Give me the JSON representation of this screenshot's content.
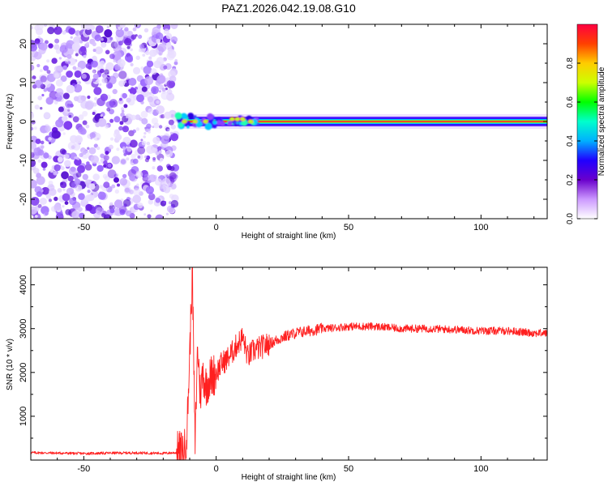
{
  "title": "PAZ1.2026.042.19.08.G10",
  "chart_data": [
    {
      "type": "heatmap",
      "name": "spectrogram",
      "xlabel": "Height of straight line (km)",
      "ylabel": "Frequency (Hz)",
      "xlim": [
        -70,
        125
      ],
      "ylim": [
        -25,
        25
      ],
      "xticks": [
        "-50",
        "0",
        "50",
        "100"
      ],
      "xtick_values": [
        -50,
        0,
        50,
        100
      ],
      "yticks": [
        "-20",
        "-10",
        "0",
        "10",
        "20"
      ],
      "ytick_values": [
        -20,
        -10,
        0,
        10,
        20
      ],
      "noise_region_x": [
        -70,
        -15
      ],
      "signal_track": {
        "x_start": -15,
        "x_end": 125,
        "frequency": 0
      },
      "colorbar": {
        "label": "Normalized spectral amplitude",
        "range": [
          0,
          1
        ],
        "ticks": [
          "0.0",
          "0.2",
          "0.4",
          "0.6",
          "0.8"
        ],
        "tick_values": [
          0.0,
          0.2,
          0.4,
          0.6,
          0.8
        ],
        "colormap": [
          "#ffffff",
          "#cc99ff",
          "#6a00cc",
          "#2000ff",
          "#00b0ff",
          "#00ffcc",
          "#00ff00",
          "#ccff00",
          "#ffcc00",
          "#ff4000",
          "#ff0040"
        ]
      }
    },
    {
      "type": "line",
      "name": "snr",
      "xlabel": "Height of straight line (km)",
      "ylabel": "SNR (10 * v/v)",
      "xlim": [
        -70,
        125
      ],
      "ylim": [
        0,
        4400
      ],
      "xticks": [
        "-50",
        "0",
        "50",
        "100"
      ],
      "xtick_values": [
        -50,
        0,
        50,
        100
      ],
      "yticks": [
        "1000",
        "2000",
        "3000",
        "4000"
      ],
      "ytick_values": [
        1000,
        2000,
        3000,
        4000
      ],
      "line_color": "#ff2020",
      "series": {
        "name": "SNR",
        "x": [
          -70,
          -60,
          -50,
          -40,
          -30,
          -20,
          -15,
          -12,
          -11,
          -10,
          -9,
          -8,
          -7,
          -6,
          -5,
          -4,
          -2,
          0,
          2,
          4,
          6,
          8,
          10,
          12,
          14,
          16,
          20,
          25,
          30,
          35,
          40,
          45,
          50,
          55,
          60,
          70,
          80,
          90,
          100,
          110,
          120,
          125
        ],
        "y": [
          170,
          160,
          150,
          160,
          165,
          155,
          170,
          200,
          700,
          2400,
          4400,
          300,
          2600,
          1500,
          2000,
          1700,
          1900,
          2000,
          2200,
          2300,
          2450,
          2650,
          2800,
          2350,
          2500,
          2550,
          2650,
          2800,
          2900,
          2950,
          3000,
          3020,
          3050,
          3050,
          3050,
          3000,
          3000,
          2980,
          2950,
          2950,
          2900,
          2900
        ]
      }
    }
  ]
}
